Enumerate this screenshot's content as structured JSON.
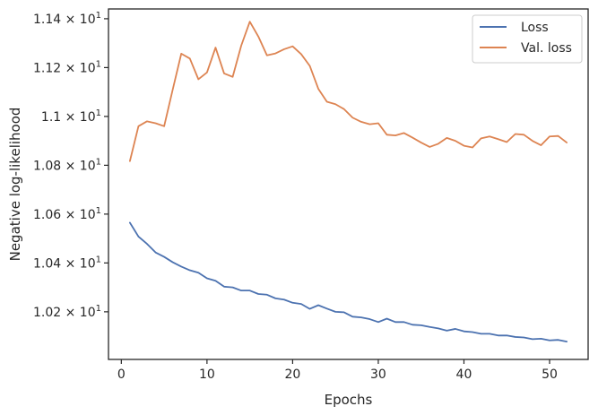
{
  "chart_data": {
    "type": "line",
    "title": "",
    "xlabel": "Epochs",
    "ylabel": "Negative log-likelihood",
    "xlim": [
      -1.5,
      54.5
    ],
    "ylim": [
      10.005,
      11.44
    ],
    "grid": false,
    "legend_position": "top-right",
    "x_ticks": [
      {
        "value": 0,
        "label": "0"
      },
      {
        "value": 10,
        "label": "10"
      },
      {
        "value": 20,
        "label": "20"
      },
      {
        "value": 30,
        "label": "30"
      },
      {
        "value": 40,
        "label": "40"
      },
      {
        "value": 50,
        "label": "50"
      }
    ],
    "y_ticks": [
      {
        "value": 10.2,
        "mantissa": "1.02",
        "times": "×",
        "base": "10",
        "exp": "1"
      },
      {
        "value": 10.4,
        "mantissa": "1.04",
        "times": "×",
        "base": "10",
        "exp": "1"
      },
      {
        "value": 10.6,
        "mantissa": "1.06",
        "times": "×",
        "base": "10",
        "exp": "1"
      },
      {
        "value": 10.8,
        "mantissa": "1.08",
        "times": "×",
        "base": "10",
        "exp": "1"
      },
      {
        "value": 11.0,
        "mantissa": "1.1",
        "times": "×",
        "base": "10",
        "exp": "1"
      },
      {
        "value": 11.2,
        "mantissa": "1.12",
        "times": "×",
        "base": "10",
        "exp": "1"
      },
      {
        "value": 11.4,
        "mantissa": "1.14",
        "times": "×",
        "base": "10",
        "exp": "1"
      }
    ],
    "series": [
      {
        "name": "Loss",
        "color": "#4c72b0",
        "x": [
          1,
          2,
          3,
          4,
          5,
          6,
          7,
          8,
          9,
          10,
          11,
          12,
          13,
          14,
          15,
          16,
          17,
          18,
          19,
          20,
          21,
          22,
          23,
          24,
          25,
          26,
          27,
          28,
          29,
          30,
          31,
          32,
          33,
          34,
          35,
          36,
          37,
          38,
          39,
          40,
          41,
          42,
          43,
          44,
          45,
          46,
          47,
          48,
          49,
          50,
          51,
          52
        ],
        "values": [
          10.565,
          10.508,
          10.478,
          10.443,
          10.425,
          10.403,
          10.385,
          10.37,
          10.36,
          10.337,
          10.327,
          10.303,
          10.3,
          10.287,
          10.287,
          10.273,
          10.27,
          10.255,
          10.25,
          10.237,
          10.232,
          10.212,
          10.227,
          10.213,
          10.2,
          10.198,
          10.18,
          10.177,
          10.17,
          10.158,
          10.172,
          10.158,
          10.158,
          10.147,
          10.145,
          10.138,
          10.132,
          10.123,
          10.13,
          10.12,
          10.117,
          10.11,
          10.11,
          10.103,
          10.103,
          10.097,
          10.095,
          10.088,
          10.09,
          10.083,
          10.085,
          10.078
        ]
      },
      {
        "name": "Val. loss",
        "color": "#dd8452",
        "x": [
          1,
          2,
          3,
          4,
          5,
          6,
          7,
          8,
          9,
          10,
          11,
          12,
          13,
          14,
          15,
          16,
          17,
          18,
          19,
          20,
          21,
          22,
          23,
          24,
          25,
          26,
          27,
          28,
          29,
          30,
          31,
          32,
          33,
          34,
          35,
          36,
          37,
          38,
          39,
          40,
          41,
          42,
          43,
          44,
          45,
          46,
          47,
          48,
          49,
          50,
          51,
          52
        ],
        "values": [
          10.817,
          10.96,
          10.98,
          10.972,
          10.96,
          11.11,
          11.257,
          11.237,
          11.152,
          11.18,
          11.282,
          11.176,
          11.162,
          11.29,
          11.388,
          11.327,
          11.25,
          11.258,
          11.275,
          11.287,
          11.255,
          11.207,
          11.113,
          11.06,
          11.05,
          11.03,
          10.995,
          10.978,
          10.968,
          10.972,
          10.925,
          10.922,
          10.932,
          10.913,
          10.893,
          10.875,
          10.888,
          10.912,
          10.9,
          10.88,
          10.873,
          10.91,
          10.918,
          10.907,
          10.895,
          10.928,
          10.925,
          10.9,
          10.882,
          10.918,
          10.92,
          10.893
        ]
      }
    ]
  }
}
